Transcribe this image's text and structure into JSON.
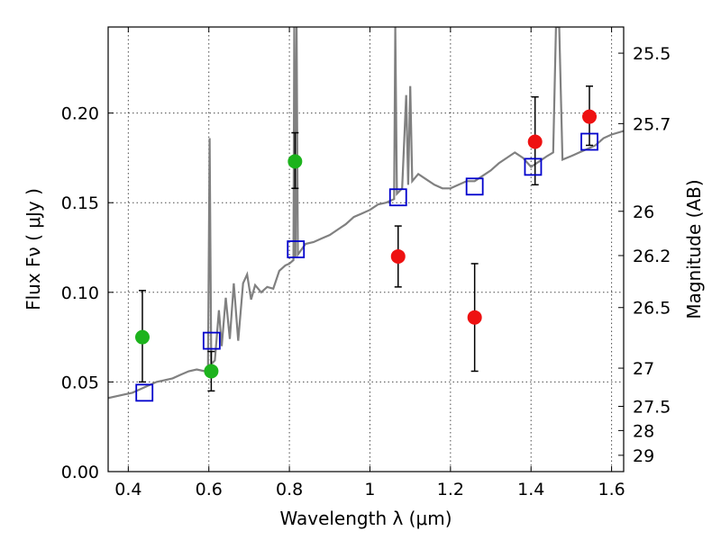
{
  "chart_data": {
    "type": "scatter",
    "xlabel": "Wavelength  λ (μm)",
    "ylabel": "Flux  Fν  ( μJy )",
    "ylabel_right": "Magnitude (AB)",
    "xlim": [
      0.35,
      1.63
    ],
    "ylim": [
      0.0,
      0.248
    ],
    "grid": true,
    "x_ticks": [
      {
        "value": 0.4,
        "label": "0.4"
      },
      {
        "value": 0.6,
        "label": "0.6"
      },
      {
        "value": 0.8,
        "label": "0.8"
      },
      {
        "value": 1.0,
        "label": "1"
      },
      {
        "value": 1.2,
        "label": "1.2"
      },
      {
        "value": 1.4,
        "label": "1.4"
      },
      {
        "value": 1.6,
        "label": "1.6"
      }
    ],
    "y_ticks": [
      {
        "value": 0.0,
        "label": "0.00"
      },
      {
        "value": 0.05,
        "label": "0.05"
      },
      {
        "value": 0.1,
        "label": "0.10"
      },
      {
        "value": 0.15,
        "label": "0.15"
      },
      {
        "value": 0.2,
        "label": "0.20"
      }
    ],
    "right_ticks": [
      {
        "flux": 0.2334,
        "label": "25.5"
      },
      {
        "flux": 0.1941,
        "label": "25.7"
      },
      {
        "flux": 0.1452,
        "label": "26"
      },
      {
        "flux": 0.1205,
        "label": "26.2"
      },
      {
        "flux": 0.0915,
        "label": "26.5"
      },
      {
        "flux": 0.0577,
        "label": "27"
      },
      {
        "flux": 0.0364,
        "label": "27.5"
      },
      {
        "flux": 0.0229,
        "label": "28"
      },
      {
        "flux": 0.0091,
        "label": "29"
      }
    ],
    "series": [
      {
        "kind": "measured-optical",
        "color": "#1db31d",
        "points": [
          {
            "x": 0.435,
            "y": 0.075,
            "ylo": 0.05,
            "yhi": 0.101
          },
          {
            "x": 0.606,
            "y": 0.056,
            "ylo": 0.045,
            "yhi": 0.067
          },
          {
            "x": 0.814,
            "y": 0.173,
            "ylo": 0.158,
            "yhi": 0.189
          }
        ]
      },
      {
        "kind": "measured-nir",
        "color": "#ee1111",
        "points": [
          {
            "x": 1.07,
            "y": 0.12,
            "ylo": 0.103,
            "yhi": 0.137
          },
          {
            "x": 1.26,
            "y": 0.086,
            "ylo": 0.056,
            "yhi": 0.116
          },
          {
            "x": 1.41,
            "y": 0.184,
            "ylo": 0.16,
            "yhi": 0.209
          },
          {
            "x": 1.545,
            "y": 0.198,
            "ylo": 0.182,
            "yhi": 0.215
          }
        ]
      },
      {
        "kind": "model-bandpass",
        "color": "#0000cc",
        "points": [
          {
            "x": 0.44,
            "y": 0.044
          },
          {
            "x": 0.607,
            "y": 0.073
          },
          {
            "x": 0.816,
            "y": 0.124
          },
          {
            "x": 1.07,
            "y": 0.153
          },
          {
            "x": 1.26,
            "y": 0.159
          },
          {
            "x": 1.405,
            "y": 0.17
          },
          {
            "x": 1.545,
            "y": 0.184
          }
        ]
      },
      {
        "kind": "template-spectrum",
        "color": "#808080",
        "points": [
          {
            "x": 0.35,
            "y": 0.041
          },
          {
            "x": 0.37,
            "y": 0.042
          },
          {
            "x": 0.39,
            "y": 0.043
          },
          {
            "x": 0.41,
            "y": 0.044
          },
          {
            "x": 0.43,
            "y": 0.046
          },
          {
            "x": 0.45,
            "y": 0.048
          },
          {
            "x": 0.47,
            "y": 0.05
          },
          {
            "x": 0.49,
            "y": 0.051
          },
          {
            "x": 0.51,
            "y": 0.052
          },
          {
            "x": 0.53,
            "y": 0.054
          },
          {
            "x": 0.55,
            "y": 0.056
          },
          {
            "x": 0.57,
            "y": 0.057
          },
          {
            "x": 0.59,
            "y": 0.056
          },
          {
            "x": 0.598,
            "y": 0.058
          },
          {
            "x": 0.602,
            "y": 0.186
          },
          {
            "x": 0.606,
            "y": 0.06
          },
          {
            "x": 0.615,
            "y": 0.062
          },
          {
            "x": 0.625,
            "y": 0.09
          },
          {
            "x": 0.632,
            "y": 0.07
          },
          {
            "x": 0.642,
            "y": 0.097
          },
          {
            "x": 0.652,
            "y": 0.074
          },
          {
            "x": 0.662,
            "y": 0.105
          },
          {
            "x": 0.673,
            "y": 0.073
          },
          {
            "x": 0.685,
            "y": 0.105
          },
          {
            "x": 0.695,
            "y": 0.11
          },
          {
            "x": 0.705,
            "y": 0.096
          },
          {
            "x": 0.715,
            "y": 0.104
          },
          {
            "x": 0.73,
            "y": 0.1
          },
          {
            "x": 0.745,
            "y": 0.103
          },
          {
            "x": 0.76,
            "y": 0.102
          },
          {
            "x": 0.775,
            "y": 0.112
          },
          {
            "x": 0.79,
            "y": 0.115
          },
          {
            "x": 0.8,
            "y": 0.116
          },
          {
            "x": 0.81,
            "y": 0.118
          },
          {
            "x": 0.812,
            "y": 0.248
          },
          {
            "x": 0.815,
            "y": 0.12
          },
          {
            "x": 0.818,
            "y": 0.248
          },
          {
            "x": 0.821,
            "y": 0.121
          },
          {
            "x": 0.84,
            "y": 0.127
          },
          {
            "x": 0.86,
            "y": 0.128
          },
          {
            "x": 0.88,
            "y": 0.13
          },
          {
            "x": 0.9,
            "y": 0.132
          },
          {
            "x": 0.92,
            "y": 0.135
          },
          {
            "x": 0.94,
            "y": 0.138
          },
          {
            "x": 0.96,
            "y": 0.142
          },
          {
            "x": 0.98,
            "y": 0.144
          },
          {
            "x": 1.0,
            "y": 0.146
          },
          {
            "x": 1.02,
            "y": 0.149
          },
          {
            "x": 1.04,
            "y": 0.15
          },
          {
            "x": 1.06,
            "y": 0.152
          },
          {
            "x": 1.063,
            "y": 0.248
          },
          {
            "x": 1.067,
            "y": 0.155
          },
          {
            "x": 1.08,
            "y": 0.158
          },
          {
            "x": 1.09,
            "y": 0.21
          },
          {
            "x": 1.095,
            "y": 0.16
          },
          {
            "x": 1.1,
            "y": 0.215
          },
          {
            "x": 1.105,
            "y": 0.162
          },
          {
            "x": 1.12,
            "y": 0.166
          },
          {
            "x": 1.14,
            "y": 0.163
          },
          {
            "x": 1.16,
            "y": 0.16
          },
          {
            "x": 1.18,
            "y": 0.158
          },
          {
            "x": 1.2,
            "y": 0.158
          },
          {
            "x": 1.22,
            "y": 0.16
          },
          {
            "x": 1.24,
            "y": 0.162
          },
          {
            "x": 1.26,
            "y": 0.162
          },
          {
            "x": 1.28,
            "y": 0.165
          },
          {
            "x": 1.3,
            "y": 0.168
          },
          {
            "x": 1.32,
            "y": 0.172
          },
          {
            "x": 1.34,
            "y": 0.175
          },
          {
            "x": 1.36,
            "y": 0.178
          },
          {
            "x": 1.38,
            "y": 0.175
          },
          {
            "x": 1.4,
            "y": 0.17
          },
          {
            "x": 1.42,
            "y": 0.173
          },
          {
            "x": 1.44,
            "y": 0.176
          },
          {
            "x": 1.455,
            "y": 0.178
          },
          {
            "x": 1.462,
            "y": 0.248
          },
          {
            "x": 1.47,
            "y": 0.248
          },
          {
            "x": 1.478,
            "y": 0.174
          },
          {
            "x": 1.5,
            "y": 0.176
          },
          {
            "x": 1.52,
            "y": 0.178
          },
          {
            "x": 1.54,
            "y": 0.18
          },
          {
            "x": 1.56,
            "y": 0.182
          },
          {
            "x": 1.58,
            "y": 0.186
          },
          {
            "x": 1.6,
            "y": 0.188
          },
          {
            "x": 1.63,
            "y": 0.19
          }
        ]
      }
    ]
  }
}
